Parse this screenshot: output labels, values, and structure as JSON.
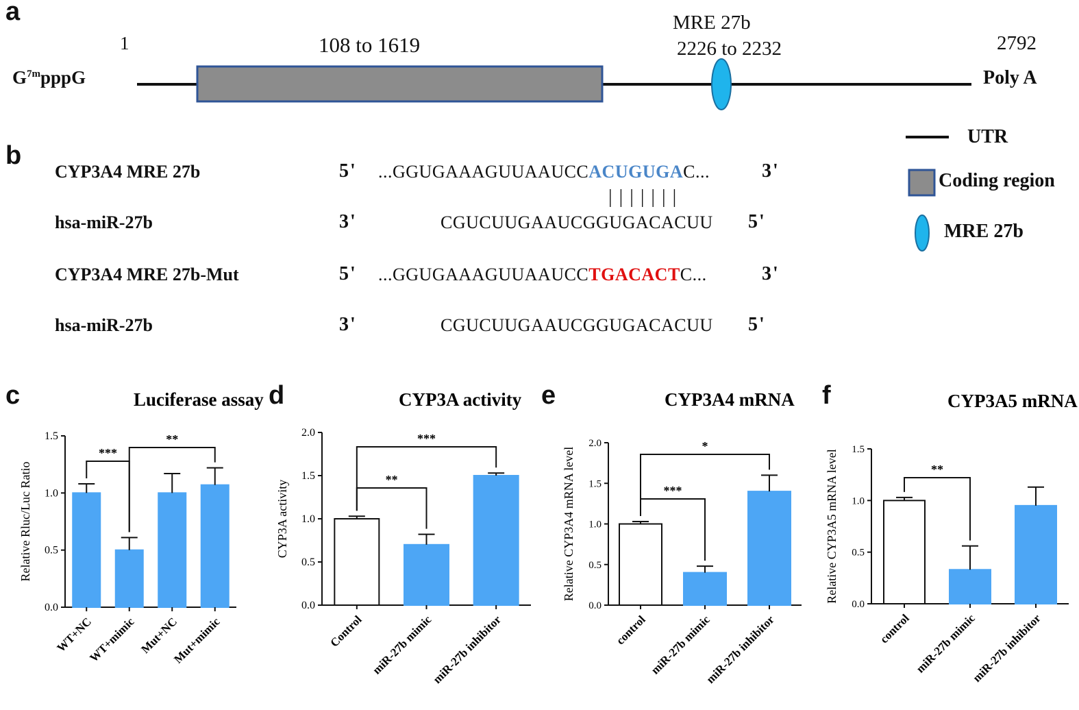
{
  "panels": {
    "a": "a",
    "b": "b",
    "c": "c",
    "d": "d",
    "e": "e",
    "f": "f"
  },
  "map": {
    "cap": "G7mpppG",
    "cap_base": "G",
    "cap_sup": "7m",
    "cap_rest": "pppG",
    "start": "1",
    "coding": "108 to 1619",
    "mre_title": "MRE 27b",
    "mre_range": "2226 to 2232",
    "end_pos": "2792",
    "polya": "Poly A",
    "colors": {
      "coding": "#8c8c8c",
      "coding_border": "#2f5597",
      "mre": "#1fb4ec",
      "line": "#111111"
    }
  },
  "legend": {
    "utr": "UTR",
    "coding": "Coding region",
    "mre": "MRE 27b"
  },
  "alignment": {
    "row1": {
      "label": "CYP3A4 MRE 27b",
      "end5": "5'",
      "pre": "...GGUGAAAGUUAAUCC",
      "hl": "ACUGUGA",
      "post": "C...",
      "end3": "3'",
      "hl_color": "#4a86c8"
    },
    "pairs": "|||||||",
    "row2": {
      "label": "hsa-miR-27b",
      "end3": "3'",
      "seq": "CGUCUUGAAUCGGUGACACUU",
      "end5": "5'"
    },
    "row3": {
      "label": "CYP3A4 MRE 27b-Mut",
      "end5": "5'",
      "pre": "...GGUGAAAGUUAAUCC",
      "hl": "TGACACT",
      "post": "C...",
      "end3": "3'",
      "hl_color": "#e01010"
    },
    "row4": {
      "label": "hsa-miR-27b",
      "end3": "3'",
      "seq": "CGUCUUGAAUCGGUGACACUU",
      "end5": "5'"
    }
  },
  "chart_data": [
    {
      "panel": "c",
      "type": "bar",
      "title": "Luciferase assay",
      "ylabel": "Relative Rluc/Luc Ratio",
      "ylim": [
        0,
        1.5
      ],
      "yticks": [
        "0.0",
        "0.5",
        "1.0",
        "1.5"
      ],
      "categories": [
        "WT+NC",
        "WT+mimic",
        "Mut+NC",
        "Mut+mimic"
      ],
      "values": [
        1.0,
        0.5,
        1.0,
        1.07
      ],
      "errors": [
        0.08,
        0.11,
        0.17,
        0.15
      ],
      "fills": [
        "#4da6f5",
        "#4da6f5",
        "#4da6f5",
        "#4da6f5"
      ],
      "sig": [
        {
          "from": 0,
          "to": 1,
          "label": "***"
        },
        {
          "from": 1,
          "to": 3,
          "label": "**"
        }
      ]
    },
    {
      "panel": "d",
      "type": "bar",
      "title": "CYP3A activity",
      "ylabel": "CYP3A activity",
      "ylim": [
        0,
        2.0
      ],
      "yticks": [
        "0.0",
        "0.5",
        "1.0",
        "1.5",
        "2.0"
      ],
      "categories": [
        "Control",
        "miR-27b mimic",
        "miR-27b inhibitor"
      ],
      "values": [
        1.0,
        0.7,
        1.5
      ],
      "errors": [
        0.03,
        0.12,
        0.03
      ],
      "fills": [
        "#ffffff",
        "#4da6f5",
        "#4da6f5"
      ],
      "sig": [
        {
          "from": 0,
          "to": 1,
          "label": "**"
        },
        {
          "from": 0,
          "to": 2,
          "label": "***"
        }
      ]
    },
    {
      "panel": "e",
      "type": "bar",
      "title": "CYP3A4 mRNA",
      "ylabel": "Relative CYP3A4 mRNA level",
      "ylim": [
        0,
        2.0
      ],
      "yticks": [
        "0.0",
        "0.5",
        "1.0",
        "1.5",
        "2.0"
      ],
      "categories": [
        "control",
        "miR-27b mimic",
        "miR-27b inhibitor"
      ],
      "values": [
        1.0,
        0.4,
        1.4
      ],
      "errors": [
        0.03,
        0.08,
        0.2
      ],
      "fills": [
        "#ffffff",
        "#4da6f5",
        "#4da6f5"
      ],
      "sig": [
        {
          "from": 0,
          "to": 1,
          "label": "***"
        },
        {
          "from": 0,
          "to": 2,
          "label": "*"
        }
      ]
    },
    {
      "panel": "f",
      "type": "bar",
      "title": "CYP3A5 mRNA",
      "ylabel": "Relative CYP3A5 mRNA level",
      "ylim": [
        0,
        1.5
      ],
      "yticks": [
        "0.0",
        "0.5",
        "1.0",
        "1.5"
      ],
      "categories": [
        "control",
        "miR-27b mimic",
        "miR-27b inhibitor"
      ],
      "values": [
        1.0,
        0.33,
        0.95
      ],
      "errors": [
        0.03,
        0.23,
        0.18
      ],
      "fills": [
        "#ffffff",
        "#4da6f5",
        "#4da6f5"
      ],
      "sig": [
        {
          "from": 0,
          "to": 1,
          "label": "**"
        }
      ]
    }
  ]
}
